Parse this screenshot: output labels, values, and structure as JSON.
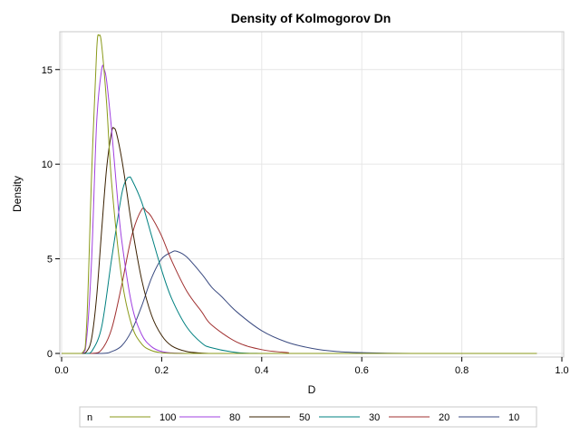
{
  "chart_data": {
    "type": "line",
    "title": "Density of Kolmogorov Dn",
    "xlabel": "D",
    "ylabel": "Density",
    "xlim": [
      0,
      1
    ],
    "ylim": [
      0,
      17
    ],
    "xticks": [
      "0.0",
      "0.2",
      "0.4",
      "0.6",
      "0.8",
      "1.0"
    ],
    "yticks": [
      "0",
      "5",
      "10",
      "15"
    ],
    "grid": true,
    "legend_title": "n",
    "legend_position": "bottom",
    "series": [
      {
        "name": "100",
        "color": "#8a9a1a",
        "x": [
          0,
          0.04,
          0.05,
          0.06,
          0.07,
          0.075,
          0.08,
          0.09,
          0.1,
          0.12,
          0.14,
          0.16,
          0.18,
          0.2,
          0.22,
          0.25,
          0.3,
          0.95
        ],
        "y": [
          0,
          0,
          1.5,
          9.5,
          16.0,
          16.8,
          16.3,
          13.2,
          9.0,
          4.0,
          1.5,
          0.5,
          0.15,
          0.04,
          0.01,
          0,
          0,
          0
        ]
      },
      {
        "name": "80",
        "color": "#a040e0",
        "x": [
          0,
          0.04,
          0.05,
          0.06,
          0.07,
          0.08,
          0.085,
          0.09,
          0.1,
          0.11,
          0.12,
          0.14,
          0.16,
          0.18,
          0.2,
          0.22,
          0.25,
          0.3,
          0.95
        ],
        "y": [
          0,
          0,
          0.8,
          5.0,
          12.2,
          15.0,
          15.0,
          14.4,
          11.8,
          8.7,
          6.0,
          2.6,
          1.0,
          0.35,
          0.1,
          0.03,
          0,
          0,
          0
        ]
      },
      {
        "name": "50",
        "color": "#3a2000",
        "x": [
          0,
          0.04,
          0.05,
          0.06,
          0.07,
          0.08,
          0.09,
          0.1,
          0.105,
          0.11,
          0.12,
          0.13,
          0.14,
          0.16,
          0.18,
          0.2,
          0.22,
          0.25,
          0.28,
          0.3,
          0.35,
          0.95
        ],
        "y": [
          0,
          0,
          0.1,
          0.8,
          3.0,
          6.5,
          9.8,
          11.7,
          11.9,
          11.6,
          10.3,
          8.6,
          6.8,
          3.9,
          2.0,
          0.95,
          0.4,
          0.1,
          0.02,
          0,
          0,
          0
        ]
      },
      {
        "name": "30",
        "color": "#008080",
        "x": [
          0,
          0.05,
          0.06,
          0.08,
          0.1,
          0.12,
          0.13,
          0.135,
          0.14,
          0.16,
          0.18,
          0.2,
          0.22,
          0.25,
          0.28,
          0.3,
          0.35,
          0.4,
          0.45,
          0.95
        ],
        "y": [
          0,
          0,
          0.1,
          1.4,
          5.0,
          8.4,
          9.2,
          9.3,
          9.2,
          8.0,
          6.2,
          4.4,
          2.9,
          1.4,
          0.55,
          0.3,
          0.05,
          0,
          0,
          0
        ]
      },
      {
        "name": "20",
        "color": "#a03030",
        "x": [
          0,
          0.06,
          0.08,
          0.1,
          0.12,
          0.14,
          0.16,
          0.17,
          0.18,
          0.2,
          0.22,
          0.25,
          0.28,
          0.3,
          0.35,
          0.4,
          0.45,
          0.5,
          0.95
        ],
        "y": [
          0,
          0,
          0.2,
          1.3,
          3.6,
          6.2,
          7.6,
          7.5,
          7.2,
          6.2,
          4.9,
          3.3,
          2.2,
          1.5,
          0.6,
          0.2,
          0.05,
          0,
          0
        ]
      },
      {
        "name": "10",
        "color": "#3a4a80",
        "x": [
          0,
          0.08,
          0.1,
          0.12,
          0.14,
          0.16,
          0.18,
          0.2,
          0.22,
          0.23,
          0.25,
          0.28,
          0.3,
          0.32,
          0.35,
          0.4,
          0.45,
          0.5,
          0.55,
          0.6,
          0.7,
          0.95
        ],
        "y": [
          0,
          0,
          0.1,
          0.4,
          1.2,
          2.5,
          4.0,
          5.0,
          5.35,
          5.4,
          5.1,
          4.2,
          3.5,
          3.0,
          2.2,
          1.2,
          0.6,
          0.27,
          0.1,
          0.04,
          0,
          0
        ]
      }
    ]
  }
}
